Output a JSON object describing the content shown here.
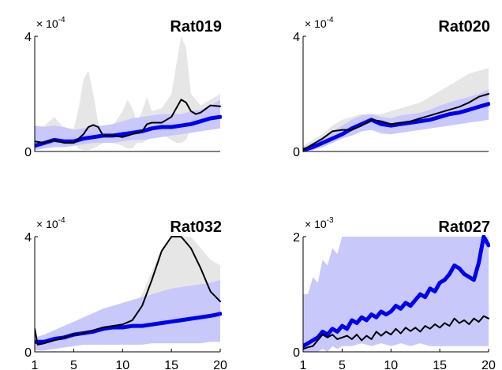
{
  "chart_data": [
    {
      "type": "line",
      "title": "Rat019",
      "y_multiplier": "× 10",
      "y_exponent": "-4",
      "ylim": [
        0,
        4
      ],
      "xlim": [
        1,
        20
      ],
      "yticks": [
        0,
        4
      ],
      "xticks": [],
      "grid": false,
      "band_colors": {
        "gray": "#e6e6e6",
        "blue": "#c8c8fa"
      },
      "series_colors": {
        "black": "#000000",
        "blue": "#0000ee"
      },
      "gray_band": {
        "x": [
          1,
          2,
          3,
          4,
          5,
          5.5,
          6,
          6.5,
          7,
          7.5,
          8,
          9,
          10,
          10.5,
          11,
          11.5,
          12,
          12.5,
          13,
          14,
          15,
          15.5,
          16,
          16.5,
          17,
          17.5,
          18,
          19,
          20
        ],
        "upper": [
          0.8,
          0.9,
          1.2,
          0.8,
          0.8,
          1.5,
          2.5,
          2.8,
          2.0,
          1.0,
          0.6,
          0.9,
          1.4,
          1.8,
          1.5,
          1.0,
          1.4,
          1.9,
          1.4,
          1.5,
          2.0,
          3.0,
          4.0,
          3.6,
          2.0,
          1.8,
          1.6,
          1.8,
          2.0
        ],
        "lower": [
          0.3,
          0.2,
          0.2,
          0.3,
          0.3,
          0.1,
          0.05,
          0.05,
          0.1,
          0.2,
          0.3,
          0.3,
          0.2,
          0.1,
          0.1,
          0.3,
          0.3,
          0.4,
          0.6,
          0.6,
          0.4,
          0.3,
          0.3,
          0.4,
          0.8,
          1.0,
          1.1,
          1.2,
          1.2
        ]
      },
      "blue_band": {
        "x": [
          1,
          2,
          3,
          4,
          5,
          6,
          7,
          8,
          9,
          10,
          11,
          12,
          13,
          14,
          15,
          16,
          17,
          18,
          19,
          20
        ],
        "upper": [
          0.9,
          0.85,
          0.9,
          0.85,
          0.75,
          0.8,
          0.9,
          0.9,
          0.95,
          1.05,
          1.15,
          1.2,
          1.25,
          1.3,
          1.3,
          1.3,
          1.4,
          1.45,
          1.6,
          1.8
        ],
        "lower": [
          0.05,
          0.1,
          0.15,
          0.15,
          0.2,
          0.25,
          0.3,
          0.3,
          0.3,
          0.35,
          0.4,
          0.4,
          0.45,
          0.5,
          0.55,
          0.6,
          0.65,
          0.7,
          0.75,
          0.8
        ]
      },
      "series": [
        {
          "color": "black",
          "x": [
            1,
            2,
            3,
            4,
            5,
            6,
            6.5,
            7,
            7.5,
            8,
            9,
            10,
            11,
            12,
            12.5,
            13,
            14,
            15,
            15.5,
            16,
            16.5,
            17,
            17.5,
            18,
            19,
            20
          ],
          "values": [
            0.35,
            0.3,
            0.4,
            0.3,
            0.3,
            0.6,
            0.85,
            0.92,
            0.85,
            0.55,
            0.55,
            0.5,
            0.6,
            0.7,
            0.95,
            1.0,
            1.0,
            1.2,
            1.5,
            1.8,
            1.7,
            1.4,
            1.3,
            1.35,
            1.6,
            1.57
          ]
        },
        {
          "color": "blue",
          "x": [
            1,
            2,
            3,
            4,
            5,
            6,
            7,
            8,
            9,
            10,
            11,
            12,
            13,
            14,
            15,
            16,
            17,
            18,
            19,
            20
          ],
          "values": [
            0.2,
            0.3,
            0.4,
            0.35,
            0.35,
            0.45,
            0.5,
            0.55,
            0.55,
            0.6,
            0.65,
            0.7,
            0.8,
            0.85,
            0.85,
            0.9,
            0.95,
            1.05,
            1.15,
            1.2
          ]
        }
      ]
    },
    {
      "type": "line",
      "title": "Rat020",
      "y_multiplier": "× 10",
      "y_exponent": "-4",
      "ylim": [
        0,
        4
      ],
      "xlim": [
        1,
        20
      ],
      "yticks": [
        0,
        4
      ],
      "xticks": [],
      "grid": false,
      "band_colors": {
        "gray": "#e6e6e6",
        "blue": "#c8c8fa"
      },
      "series_colors": {
        "black": "#000000",
        "blue": "#0000ee"
      },
      "gray_band": {
        "x": [
          1,
          2,
          3,
          4,
          5,
          6,
          7,
          8,
          9,
          10,
          11,
          12,
          13,
          14,
          15,
          16,
          17,
          18,
          19,
          20
        ],
        "upper": [
          0.2,
          0.4,
          0.6,
          0.9,
          1.1,
          1.2,
          1.3,
          1.3,
          1.3,
          1.4,
          1.5,
          1.6,
          1.7,
          1.9,
          2.1,
          2.3,
          2.5,
          2.7,
          2.8,
          2.9
        ],
        "lower": [
          0.0,
          0.05,
          0.15,
          0.3,
          0.45,
          0.6,
          0.75,
          0.75,
          0.6,
          0.6,
          0.65,
          0.7,
          0.75,
          0.8,
          0.85,
          0.9,
          0.95,
          1.0,
          1.05,
          1.1
        ]
      },
      "blue_band": {
        "x": [
          1,
          2,
          3,
          4,
          5,
          6,
          7,
          8,
          9,
          10,
          11,
          12,
          13,
          14,
          15,
          16,
          17,
          18,
          19,
          20
        ],
        "upper": [
          0.15,
          0.3,
          0.5,
          0.7,
          0.9,
          1.1,
          1.25,
          1.3,
          1.2,
          1.15,
          1.25,
          1.3,
          1.35,
          1.45,
          1.6,
          1.7,
          1.8,
          1.9,
          2.0,
          2.15
        ],
        "lower": [
          0.0,
          0.05,
          0.15,
          0.3,
          0.45,
          0.55,
          0.7,
          0.75,
          0.65,
          0.6,
          0.65,
          0.7,
          0.75,
          0.8,
          0.85,
          0.9,
          0.95,
          1.0,
          1.05,
          1.1
        ]
      },
      "series": [
        {
          "color": "black",
          "x": [
            1,
            2,
            3,
            4,
            5,
            6,
            7,
            8,
            9,
            10,
            11,
            12,
            13,
            14,
            15,
            16,
            17,
            18,
            19,
            20
          ],
          "values": [
            0.05,
            0.25,
            0.45,
            0.7,
            0.75,
            0.75,
            0.9,
            1.1,
            1.05,
            0.95,
            1.0,
            1.05,
            1.15,
            1.25,
            1.35,
            1.45,
            1.55,
            1.7,
            1.9,
            2.0
          ]
        },
        {
          "color": "blue",
          "x": [
            1,
            2,
            3,
            4,
            5,
            6,
            7,
            8,
            9,
            10,
            11,
            12,
            13,
            14,
            15,
            16,
            17,
            18,
            19,
            20
          ],
          "values": [
            0.05,
            0.15,
            0.3,
            0.45,
            0.6,
            0.8,
            0.95,
            1.1,
            0.95,
            0.9,
            0.95,
            1.0,
            1.05,
            1.1,
            1.2,
            1.3,
            1.35,
            1.45,
            1.55,
            1.65
          ]
        }
      ]
    },
    {
      "type": "line",
      "title": "Rat032",
      "y_multiplier": "× 10",
      "y_exponent": "-4",
      "ylim": [
        0,
        4
      ],
      "xlim": [
        1,
        20
      ],
      "yticks": [
        0,
        4
      ],
      "xticks": [
        1,
        5,
        10,
        15,
        20
      ],
      "grid": false,
      "band_colors": {
        "gray": "#e6e6e6",
        "blue": "#c8c8fa"
      },
      "series_colors": {
        "black": "#000000",
        "blue": "#0000ee"
      },
      "gray_band": {
        "x": [
          1,
          1.5,
          2,
          3,
          4,
          5,
          6,
          7,
          8,
          9,
          10,
          11,
          12,
          13,
          14,
          15,
          16,
          17,
          18,
          19,
          20
        ],
        "upper": [
          0.5,
          0.3,
          0.3,
          0.5,
          0.7,
          0.8,
          0.9,
          1.0,
          1.1,
          1.2,
          1.3,
          1.5,
          2.0,
          2.8,
          3.6,
          4.0,
          4.0,
          4.0,
          3.6,
          3.2,
          3.0
        ],
        "lower": [
          0.1,
          0.15,
          0.2,
          0.25,
          0.3,
          0.35,
          0.4,
          0.45,
          0.5,
          0.55,
          0.6,
          0.65,
          0.7,
          0.75,
          0.8,
          0.8,
          0.75,
          0.7,
          0.65,
          0.6,
          0.6
        ]
      },
      "blue_band": {
        "x": [
          1,
          2,
          3,
          4,
          5,
          6,
          7,
          8,
          9,
          10,
          11,
          12,
          13,
          14,
          15,
          16,
          17,
          18,
          19,
          20
        ],
        "upper": [
          0.5,
          0.6,
          0.75,
          0.9,
          1.05,
          1.2,
          1.35,
          1.5,
          1.6,
          1.7,
          1.8,
          1.9,
          2.0,
          2.1,
          2.2,
          2.25,
          2.3,
          2.35,
          2.4,
          2.5
        ],
        "lower": [
          0.05,
          0.05,
          0.1,
          0.15,
          0.2,
          0.25,
          0.25,
          0.25,
          0.25,
          0.25,
          0.25,
          0.25,
          0.3,
          0.3,
          0.3,
          0.3,
          0.3,
          0.3,
          0.35,
          0.35
        ]
      },
      "series": [
        {
          "color": "black",
          "x": [
            1,
            1.3,
            2,
            3,
            4,
            5,
            6,
            7,
            8,
            9,
            10,
            11,
            12,
            13,
            14,
            15,
            16,
            17,
            18,
            19,
            20
          ],
          "values": [
            0.8,
            0.25,
            0.3,
            0.4,
            0.5,
            0.6,
            0.65,
            0.75,
            0.85,
            0.9,
            0.95,
            1.1,
            1.6,
            2.5,
            3.5,
            4.0,
            4.0,
            3.6,
            2.9,
            2.1,
            1.75
          ]
        },
        {
          "color": "blue",
          "x": [
            1,
            2,
            3,
            4,
            5,
            6,
            7,
            8,
            9,
            10,
            11,
            12,
            13,
            14,
            15,
            16,
            17,
            18,
            19,
            20
          ],
          "values": [
            0.35,
            0.35,
            0.45,
            0.5,
            0.6,
            0.65,
            0.7,
            0.8,
            0.85,
            0.85,
            0.9,
            0.9,
            0.95,
            1.0,
            1.05,
            1.1,
            1.15,
            1.2,
            1.25,
            1.32
          ]
        }
      ]
    },
    {
      "type": "line",
      "title": "Rat027",
      "y_multiplier": "× 10",
      "y_exponent": "-3",
      "ylim": [
        0,
        2
      ],
      "xlim": [
        1,
        20
      ],
      "yticks": [
        0,
        2
      ],
      "xticks": [
        1,
        5,
        10,
        15,
        20
      ],
      "grid": false,
      "band_colors": {
        "gray": "#e6e6e6",
        "blue": "#c8c8fa"
      },
      "series_colors": {
        "black": "#000000",
        "blue": "#0000ee"
      },
      "gray_band": {
        "x": [
          1,
          2,
          3,
          4,
          5,
          6,
          7,
          8,
          9,
          10,
          11,
          12,
          13,
          14,
          15,
          16,
          17,
          18,
          19,
          20
        ],
        "upper": [
          0.3,
          0.4,
          0.5,
          0.6,
          0.7,
          0.8,
          0.8,
          0.9,
          1.0,
          1.0,
          1.1,
          1.1,
          1.2,
          1.2,
          1.3,
          1.3,
          1.4,
          1.4,
          1.5,
          1.5
        ],
        "lower": [
          0.05,
          0.1,
          0.15,
          0.15,
          0.2,
          0.2,
          0.25,
          0.25,
          0.25,
          0.3,
          0.3,
          0.3,
          0.35,
          0.35,
          0.35,
          0.35,
          0.4,
          0.4,
          0.4,
          0.4
        ]
      },
      "blue_band": {
        "x": [
          1,
          1.5,
          2,
          2.5,
          3,
          3.5,
          4,
          4.5,
          5,
          6,
          7,
          8,
          9,
          10,
          11,
          12,
          13,
          14,
          15,
          16,
          17,
          18,
          19,
          20
        ],
        "upper": [
          1.0,
          1.0,
          1.3,
          1.2,
          1.6,
          1.5,
          1.8,
          1.7,
          2.0,
          2.0,
          2.0,
          2.0,
          2.0,
          2.0,
          2.0,
          2.0,
          2.0,
          2.0,
          2.0,
          2.0,
          2.0,
          2.0,
          2.0,
          2.0
        ],
        "lower": [
          0.0,
          0.0,
          0.0,
          0.0,
          0.05,
          0.0,
          0.1,
          0.05,
          0.1,
          0.1,
          0.15,
          0.1,
          0.15,
          0.1,
          0.15,
          0.1,
          0.15,
          0.1,
          0.1,
          0.1,
          0.1,
          0.1,
          0.1,
          0.1
        ]
      },
      "series": [
        {
          "color": "black",
          "x": [
            1,
            1.5,
            2,
            2.5,
            3,
            3.5,
            4,
            4.5,
            5,
            5.5,
            6,
            6.5,
            7,
            7.5,
            8,
            8.5,
            9,
            9.5,
            10,
            10.5,
            11,
            11.5,
            12,
            12.5,
            13,
            13.5,
            14,
            14.5,
            15,
            15.5,
            16,
            16.5,
            17,
            17.5,
            18,
            18.5,
            19,
            19.5,
            20
          ],
          "values": [
            0.05,
            0.08,
            0.1,
            0.2,
            0.3,
            0.25,
            0.3,
            0.22,
            0.25,
            0.28,
            0.22,
            0.3,
            0.2,
            0.28,
            0.22,
            0.35,
            0.28,
            0.35,
            0.3,
            0.4,
            0.32,
            0.42,
            0.36,
            0.42,
            0.35,
            0.45,
            0.4,
            0.48,
            0.42,
            0.5,
            0.45,
            0.58,
            0.5,
            0.55,
            0.48,
            0.58,
            0.52,
            0.62,
            0.58
          ]
        },
        {
          "color": "blue",
          "x": [
            1,
            1.5,
            2,
            2.5,
            3,
            3.5,
            4,
            4.5,
            5,
            5.5,
            6,
            6.5,
            7,
            7.5,
            8,
            8.5,
            9,
            9.5,
            10,
            10.5,
            11,
            11.5,
            12,
            12.5,
            13,
            13.5,
            14,
            14.5,
            15,
            15.5,
            16,
            16.5,
            17,
            17.5,
            18,
            18.5,
            19,
            19.5,
            20
          ],
          "values": [
            0.1,
            0.15,
            0.2,
            0.25,
            0.35,
            0.3,
            0.4,
            0.35,
            0.45,
            0.4,
            0.55,
            0.5,
            0.6,
            0.55,
            0.65,
            0.6,
            0.7,
            0.65,
            0.7,
            0.8,
            0.75,
            0.85,
            0.8,
            0.9,
            1.0,
            0.95,
            1.1,
            1.05,
            1.2,
            1.25,
            1.35,
            1.5,
            1.45,
            1.35,
            1.3,
            1.25,
            1.55,
            2.0,
            1.85
          ]
        }
      ]
    }
  ]
}
